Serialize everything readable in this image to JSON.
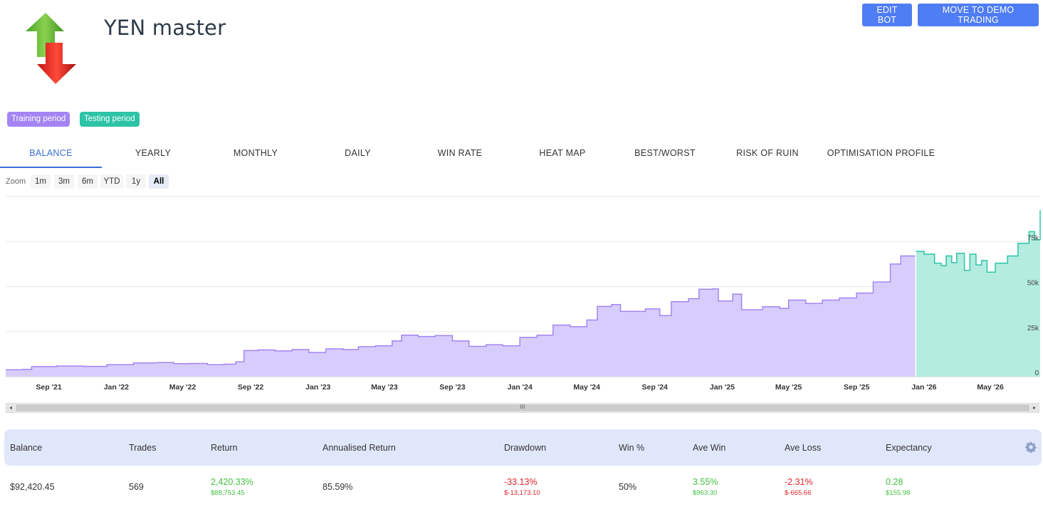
{
  "header": {
    "title": "YEN master",
    "edit_button": "EDIT BOT",
    "move_button": "MOVE TO DEMO TRADING"
  },
  "legend": {
    "training": "Training period",
    "testing": "Testing period"
  },
  "colors": {
    "accent": "#4f7df3",
    "training": "#a384f2",
    "training_fill": "#d7cdfc",
    "testing": "#2cc3a7",
    "testing_fill": "#b4ece0",
    "positive": "#3fbf3f",
    "negative": "#e0242c"
  },
  "tabs": [
    "BALANCE",
    "YEARLY",
    "MONTHLY",
    "DAILY",
    "WIN RATE",
    "HEAT MAP",
    "BEST/WORST",
    "RISK OF RUIN",
    "OPTIMISATION PROFILE"
  ],
  "active_tab": 0,
  "zoom": {
    "label": "Zoom",
    "options": [
      "1m",
      "3m",
      "6m",
      "YTD",
      "1y",
      "All"
    ],
    "selected": "All"
  },
  "chart_data": {
    "type": "area",
    "x_ticks": [
      "Sep '21",
      "Jan '22",
      "May '22",
      "Sep '22",
      "Jan '23",
      "May '23",
      "Sep '23",
      "Jan '24",
      "May '24",
      "Sep '24",
      "Jan '25",
      "May '25",
      "Sep '25",
      "Jan '26",
      "May '26"
    ],
    "y_ticks": [
      "0",
      "25k",
      "50k",
      "75k"
    ],
    "ylim": [
      0,
      100000
    ],
    "split_date": "2025-12-17",
    "series": [
      {
        "name": "Training period",
        "points": [
          [
            "2021-06-15",
            3800
          ],
          [
            "2021-07-15",
            4000
          ],
          [
            "2021-08-01",
            5600
          ],
          [
            "2021-09-15",
            5900
          ],
          [
            "2021-11-01",
            5700
          ],
          [
            "2021-12-15",
            6600
          ],
          [
            "2022-02-01",
            7600
          ],
          [
            "2022-03-15",
            7800
          ],
          [
            "2022-04-15",
            7200
          ],
          [
            "2022-05-15",
            7300
          ],
          [
            "2022-06-15",
            6600
          ],
          [
            "2022-07-15",
            6900
          ],
          [
            "2022-08-05",
            8200
          ],
          [
            "2022-08-20",
            14500
          ],
          [
            "2022-09-15",
            14800
          ],
          [
            "2022-10-15",
            14300
          ],
          [
            "2022-11-15",
            15000
          ],
          [
            "2022-12-15",
            13400
          ],
          [
            "2023-01-15",
            15400
          ],
          [
            "2023-02-15",
            15000
          ],
          [
            "2023-03-15",
            16600
          ],
          [
            "2023-04-15",
            17100
          ],
          [
            "2023-05-15",
            19800
          ],
          [
            "2023-06-01",
            23000
          ],
          [
            "2023-07-01",
            22300
          ],
          [
            "2023-08-01",
            22800
          ],
          [
            "2023-09-01",
            19800
          ],
          [
            "2023-10-01",
            16800
          ],
          [
            "2023-11-01",
            17700
          ],
          [
            "2023-12-01",
            17100
          ],
          [
            "2024-01-01",
            21800
          ],
          [
            "2024-02-01",
            23000
          ],
          [
            "2024-03-01",
            28600
          ],
          [
            "2024-04-01",
            27700
          ],
          [
            "2024-05-01",
            31400
          ],
          [
            "2024-05-20",
            39000
          ],
          [
            "2024-06-15",
            40000
          ],
          [
            "2024-07-01",
            36200
          ],
          [
            "2024-08-15",
            37600
          ],
          [
            "2024-09-10",
            33900
          ],
          [
            "2024-10-01",
            41600
          ],
          [
            "2024-11-01",
            43300
          ],
          [
            "2024-11-20",
            48500
          ],
          [
            "2024-12-15",
            48700
          ],
          [
            "2024-12-25",
            42000
          ],
          [
            "2025-01-20",
            45800
          ],
          [
            "2025-02-05",
            37100
          ],
          [
            "2025-03-15",
            38800
          ],
          [
            "2025-04-15",
            37900
          ],
          [
            "2025-05-01",
            42500
          ],
          [
            "2025-06-01",
            40600
          ],
          [
            "2025-07-01",
            42500
          ],
          [
            "2025-08-01",
            43700
          ],
          [
            "2025-09-01",
            46400
          ],
          [
            "2025-10-01",
            52500
          ],
          [
            "2025-11-01",
            62500
          ],
          [
            "2025-11-20",
            67000
          ],
          [
            "2025-12-17",
            69500
          ]
        ]
      },
      {
        "name": "Testing period",
        "points": [
          [
            "2025-12-17",
            69500
          ],
          [
            "2026-01-01",
            68000
          ],
          [
            "2026-01-20",
            63000
          ],
          [
            "2026-02-01",
            61600
          ],
          [
            "2026-02-10",
            67000
          ],
          [
            "2026-02-20",
            63300
          ],
          [
            "2026-03-01",
            68500
          ],
          [
            "2026-03-15",
            59000
          ],
          [
            "2026-03-25",
            68000
          ],
          [
            "2026-04-05",
            62000
          ],
          [
            "2026-04-15",
            64500
          ],
          [
            "2026-04-25",
            58000
          ],
          [
            "2026-05-10",
            63000
          ],
          [
            "2026-06-01",
            67000
          ],
          [
            "2026-06-20",
            74000
          ],
          [
            "2026-07-10",
            80500
          ],
          [
            "2026-07-20",
            76000
          ],
          [
            "2026-07-30",
            92400
          ]
        ]
      }
    ]
  },
  "stats": {
    "headers": {
      "balance": "Balance",
      "trades": "Trades",
      "return": "Return",
      "annualised": "Annualised Return",
      "drawdown": "Drawdown",
      "win_pct": "Win %",
      "ave_win": "Ave Win",
      "ave_loss": "Ave Loss",
      "expectancy": "Expectancy"
    },
    "values": {
      "balance": "$92,420.45",
      "trades": "569",
      "return": "2,420.33%",
      "return_sub": "$88,753.45",
      "annualised": "85.59%",
      "drawdown": "-33.13%",
      "drawdown_sub": "$-13,173.10",
      "win_pct": "50%",
      "ave_win": "3.55%",
      "ave_win_sub": "$963.30",
      "ave_loss": "-2.31%",
      "ave_loss_sub": "$-665.66",
      "expectancy": "0.28",
      "expectancy_sub": "$155.98"
    }
  }
}
